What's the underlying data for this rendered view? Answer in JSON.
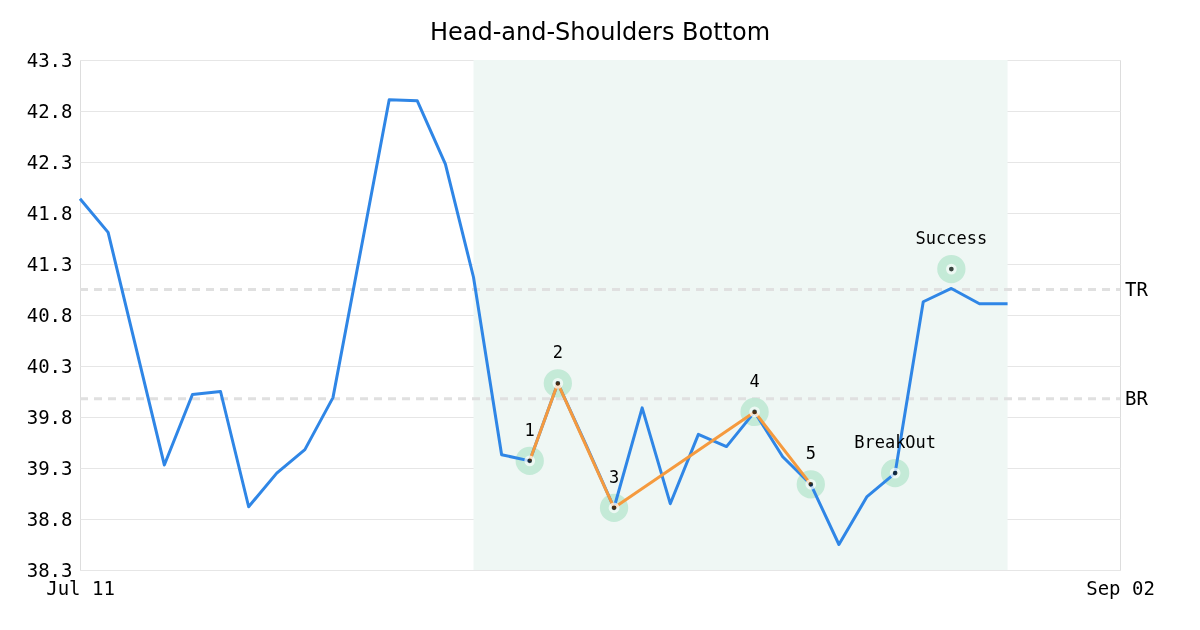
{
  "chart_data": {
    "type": "line",
    "title": "Head-and-Shoulders Bottom",
    "categories": [
      "Jul 11",
      null,
      null,
      null,
      null,
      null,
      null,
      null,
      null,
      null,
      null,
      null,
      null,
      null,
      null,
      null,
      null,
      null,
      null,
      null,
      null,
      null,
      null,
      null,
      null,
      null,
      null,
      null,
      null,
      null,
      null,
      null,
      null,
      null,
      null,
      null,
      null,
      "Sep 02"
    ],
    "ylim": [
      38.3,
      43.3
    ],
    "yticks": [
      38.3,
      38.8,
      39.3,
      39.8,
      40.3,
      40.8,
      41.3,
      41.8,
      42.3,
      42.8,
      43.3
    ],
    "grid": "y",
    "series": [
      {
        "color": "#2f86e6",
        "values": [
          41.94,
          41.61,
          40.47,
          39.33,
          40.02,
          40.05,
          38.92,
          39.25,
          39.48,
          39.99,
          41.45,
          42.91,
          42.9,
          42.28,
          41.17,
          39.43,
          39.37,
          40.13,
          39.53,
          38.91,
          39.89,
          38.95,
          39.63,
          39.51,
          39.85,
          39.41,
          39.14,
          38.55,
          39.02,
          39.25,
          40.93,
          41.06,
          40.91,
          40.91,
          null,
          null,
          null,
          null
        ]
      },
      {
        "color": "#f59a3e",
        "marker": "circle",
        "values": [
          null,
          null,
          null,
          null,
          null,
          null,
          null,
          null,
          null,
          null,
          null,
          null,
          null,
          null,
          null,
          null,
          39.37,
          40.13,
          null,
          38.91,
          null,
          null,
          null,
          null,
          39.85,
          null,
          39.14,
          null,
          null,
          null,
          null,
          null,
          null,
          null,
          null,
          null,
          null,
          null
        ]
      },
      {
        "type": "scatter",
        "color": "#bfe8d4",
        "marker": "circle",
        "values": [
          null,
          null,
          null,
          null,
          null,
          null,
          null,
          null,
          null,
          null,
          null,
          null,
          null,
          null,
          null,
          null,
          null,
          null,
          null,
          null,
          null,
          null,
          null,
          null,
          null,
          null,
          null,
          null,
          null,
          39.25,
          null,
          41.25,
          null,
          null,
          null,
          null,
          null,
          null
        ]
      }
    ],
    "annotations": [
      {
        "text": "1",
        "y": 39.37
      },
      {
        "text": "2",
        "y": 40.13
      },
      {
        "text": "3",
        "y": 38.91
      },
      {
        "text": "4",
        "y": 39.85
      },
      {
        "text": "5",
        "y": 39.14
      },
      {
        "text": "BreakOut",
        "y": 39.25
      },
      {
        "text": "Success",
        "y": 41.25
      }
    ],
    "ref_lines": [
      {
        "axis": "y",
        "value": 41.05,
        "label": "TR",
        "color": "#e0e0e0",
        "line_style": "dashed"
      },
      {
        "axis": "y",
        "value": 39.98,
        "label": "BR",
        "color": "#e0e0e0",
        "line_style": "dashed"
      }
    ]
  }
}
